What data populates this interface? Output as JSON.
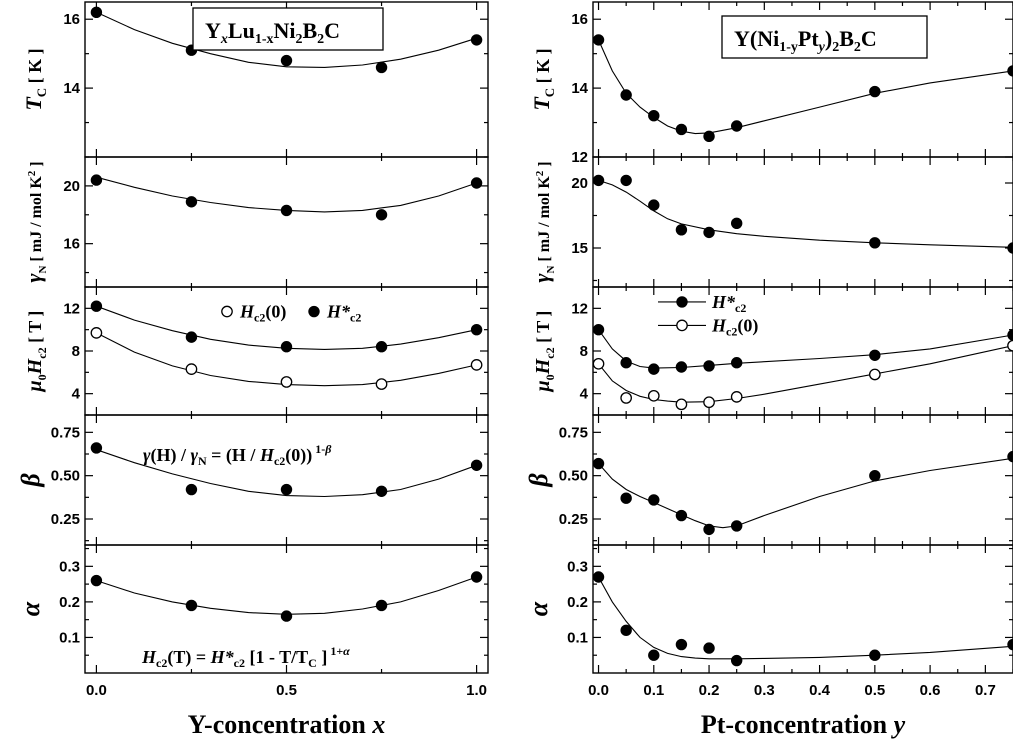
{
  "chart_data": [
    {
      "type": "scatter",
      "title": "Y_xLu_1-xNi_2B_2C",
      "title_parts": {
        "Y": "Y",
        "x1": "x",
        "Lu": "Lu",
        "sub1": "1-x",
        "Ni": "Ni",
        "sub2": "2",
        "B": "B",
        "sub3": "2",
        "C": "C"
      },
      "xlabel": "Y-concentration x",
      "xlabel_parts": {
        "main": "Y-concentration ",
        "var": "x"
      },
      "xlim": [
        -0.03,
        1.03
      ],
      "xticks": [
        0.0,
        0.5,
        1.0
      ],
      "xticklabels": [
        "0.0",
        "0.5",
        "1.0"
      ],
      "panels": [
        {
          "ylabel": "T_C [ K ]",
          "ylim": [
            12.0,
            16.5
          ],
          "yticks": [
            14,
            16
          ],
          "yticklabels": [
            "14",
            "16"
          ],
          "series": [
            {
              "marker": "filled",
              "x": [
                0.0,
                0.25,
                0.5,
                0.75,
                1.0
              ],
              "y": [
                16.2,
                15.1,
                14.8,
                14.6,
                15.4
              ],
              "fit": {
                "x": [
                  0.0,
                  0.1,
                  0.2,
                  0.3,
                  0.4,
                  0.5,
                  0.6,
                  0.7,
                  0.8,
                  0.9,
                  1.0
                ],
                "y": [
                  16.2,
                  15.7,
                  15.3,
                  15.0,
                  14.75,
                  14.62,
                  14.6,
                  14.67,
                  14.84,
                  15.1,
                  15.45
                ]
              }
            }
          ]
        },
        {
          "ylabel": "γ_N [ mJ / mol K² ]",
          "ylim": [
            13.0,
            22.0
          ],
          "yticks": [
            16,
            20
          ],
          "yticklabels": [
            "16",
            "20"
          ],
          "series": [
            {
              "marker": "filled",
              "x": [
                0.0,
                0.25,
                0.5,
                0.75,
                1.0
              ],
              "y": [
                20.4,
                18.9,
                18.3,
                18.0,
                20.2
              ],
              "fit": {
                "x": [
                  0.0,
                  0.1,
                  0.2,
                  0.3,
                  0.4,
                  0.5,
                  0.6,
                  0.7,
                  0.8,
                  0.9,
                  1.0
                ],
                "y": [
                  20.6,
                  19.9,
                  19.3,
                  18.85,
                  18.5,
                  18.3,
                  18.2,
                  18.3,
                  18.65,
                  19.3,
                  20.2
                ]
              }
            }
          ]
        },
        {
          "ylabel": "μ0Hc2 [ T ]",
          "ylim": [
            2.0,
            14.0
          ],
          "yticks": [
            4,
            8,
            12
          ],
          "yticklabels": [
            "4",
            "8",
            "12"
          ],
          "legend": [
            {
              "marker": "open",
              "label": "Hc2(0)"
            },
            {
              "marker": "filled",
              "label": "H*c2"
            }
          ],
          "series": [
            {
              "name": "H*c2",
              "marker": "filled",
              "x": [
                0.0,
                0.25,
                0.5,
                0.75,
                1.0
              ],
              "y": [
                12.2,
                9.3,
                8.4,
                8.4,
                10.0
              ],
              "fit": {
                "x": [
                  0.0,
                  0.1,
                  0.2,
                  0.3,
                  0.4,
                  0.5,
                  0.6,
                  0.7,
                  0.8,
                  0.9,
                  1.0
                ],
                "y": [
                  12.2,
                  10.9,
                  9.9,
                  9.1,
                  8.55,
                  8.25,
                  8.15,
                  8.25,
                  8.65,
                  9.25,
                  10.0
                ]
              }
            },
            {
              "name": "Hc2(0)",
              "marker": "open",
              "x": [
                0.0,
                0.25,
                0.5,
                0.75,
                1.0
              ],
              "y": [
                9.7,
                6.3,
                5.1,
                4.9,
                6.7
              ],
              "fit": {
                "x": [
                  0.0,
                  0.1,
                  0.2,
                  0.3,
                  0.4,
                  0.5,
                  0.6,
                  0.7,
                  0.8,
                  0.9,
                  1.0
                ],
                "y": [
                  9.7,
                  7.9,
                  6.6,
                  5.7,
                  5.15,
                  4.85,
                  4.75,
                  4.85,
                  5.25,
                  5.9,
                  6.7
                ]
              }
            }
          ]
        },
        {
          "ylabel": "β",
          "ylim": [
            0.1,
            0.85
          ],
          "yticks": [
            0.25,
            0.5,
            0.75
          ],
          "yticklabels": [
            "0.25",
            "0.50",
            "0.75"
          ],
          "annotation": "γ(H) / γ_N = (H / Hc2(0)) ^1-β",
          "series": [
            {
              "marker": "filled",
              "x": [
                0.0,
                0.25,
                0.5,
                0.75,
                1.0
              ],
              "y": [
                0.66,
                0.42,
                0.42,
                0.41,
                0.56
              ],
              "fit": {
                "x": [
                  0.0,
                  0.1,
                  0.2,
                  0.3,
                  0.4,
                  0.5,
                  0.6,
                  0.7,
                  0.8,
                  0.9,
                  1.0
                ],
                "y": [
                  0.65,
                  0.575,
                  0.51,
                  0.455,
                  0.41,
                  0.385,
                  0.38,
                  0.39,
                  0.42,
                  0.48,
                  0.56
                ]
              }
            }
          ]
        },
        {
          "ylabel": "α",
          "ylim": [
            0.0,
            0.36
          ],
          "yticks": [
            0.1,
            0.2,
            0.3
          ],
          "yticklabels": [
            "0.1",
            "0.2",
            "0.3"
          ],
          "annotation": "Hc2(T) = H*c2 [1 - T/T_C ] ^1+α",
          "series": [
            {
              "marker": "filled",
              "x": [
                0.0,
                0.25,
                0.5,
                0.75,
                1.0
              ],
              "y": [
                0.26,
                0.19,
                0.16,
                0.19,
                0.27
              ],
              "fit": {
                "x": [
                  0.0,
                  0.1,
                  0.2,
                  0.3,
                  0.4,
                  0.5,
                  0.6,
                  0.7,
                  0.8,
                  0.9,
                  1.0
                ],
                "y": [
                  0.26,
                  0.225,
                  0.2,
                  0.182,
                  0.17,
                  0.165,
                  0.168,
                  0.18,
                  0.2,
                  0.232,
                  0.27
                ]
              }
            }
          ]
        }
      ]
    },
    {
      "type": "scatter",
      "title": "Y(Ni_1-yPt_y)_2B_2C",
      "title_parts": {
        "Y": "Y(Ni",
        "sub1": "1-y",
        "Pt": "Pt",
        "sub2": "y",
        "close": ")",
        "sub3": "2",
        "B": "B",
        "sub4": "2",
        "C": "C"
      },
      "xlabel": "Pt-concentration y",
      "xlabel_parts": {
        "main": "Pt-concentration ",
        "var": "y"
      },
      "xlim": [
        -0.01,
        0.75
      ],
      "xticks": [
        0.0,
        0.1,
        0.2,
        0.3,
        0.4,
        0.5,
        0.6,
        0.7
      ],
      "xticklabels": [
        "0.0",
        "0.1",
        "0.2",
        "0.3",
        "0.4",
        "0.5",
        "0.6",
        "0.7"
      ],
      "panels": [
        {
          "ylabel": "T_C [ K ]",
          "ylim": [
            12.0,
            16.5
          ],
          "yticks": [
            12,
            14,
            16
          ],
          "yticklabels": [
            "12",
            "14",
            "16"
          ],
          "series": [
            {
              "marker": "filled",
              "x": [
                0.0,
                0.05,
                0.1,
                0.15,
                0.2,
                0.25,
                0.5,
                0.75
              ],
              "y": [
                15.4,
                13.8,
                13.2,
                12.8,
                12.6,
                12.9,
                13.9,
                14.5
              ],
              "fit": {
                "x": [
                  0.0,
                  0.025,
                  0.05,
                  0.075,
                  0.1,
                  0.125,
                  0.15,
                  0.175,
                  0.2,
                  0.25,
                  0.3,
                  0.4,
                  0.5,
                  0.6,
                  0.75
                ],
                "y": [
                  15.4,
                  14.5,
                  13.85,
                  13.45,
                  13.15,
                  12.9,
                  12.75,
                  12.68,
                  12.7,
                  12.85,
                  13.05,
                  13.45,
                  13.85,
                  14.15,
                  14.5
                ]
              }
            }
          ]
        },
        {
          "ylabel": "γ_N [ mJ / mol K² ]",
          "ylim": [
            12.0,
            22.0
          ],
          "yticks": [
            15,
            20
          ],
          "yticklabels": [
            "15",
            "20"
          ],
          "series": [
            {
              "marker": "filled",
              "x": [
                0.0,
                0.05,
                0.1,
                0.15,
                0.2,
                0.25,
                0.5,
                0.75
              ],
              "y": [
                20.2,
                20.2,
                18.3,
                16.4,
                16.2,
                16.9,
                15.4,
                15.0
              ],
              "fit": {
                "x": [
                  0.0,
                  0.025,
                  0.05,
                  0.075,
                  0.1,
                  0.125,
                  0.15,
                  0.2,
                  0.25,
                  0.3,
                  0.4,
                  0.5,
                  0.6,
                  0.75
                ],
                "y": [
                  20.2,
                  19.85,
                  19.3,
                  18.6,
                  17.85,
                  17.25,
                  16.85,
                  16.4,
                  16.1,
                  15.9,
                  15.6,
                  15.4,
                  15.25,
                  15.05
                ]
              }
            }
          ]
        },
        {
          "ylabel": "μ0Hc2 [ T ]",
          "ylim": [
            2.0,
            14.0
          ],
          "yticks": [
            4,
            8,
            12
          ],
          "yticklabels": [
            "4",
            "8",
            "12"
          ],
          "legend": [
            {
              "marker": "filled",
              "label": "H*c2"
            },
            {
              "marker": "open",
              "label": "Hc2(0)"
            }
          ],
          "series": [
            {
              "name": "H*c2",
              "marker": "filled",
              "x": [
                0.0,
                0.05,
                0.1,
                0.15,
                0.2,
                0.25,
                0.5,
                0.75
              ],
              "y": [
                10.0,
                6.9,
                6.3,
                6.5,
                6.6,
                6.9,
                7.6,
                9.5
              ],
              "fit": {
                "x": [
                  0.0,
                  0.025,
                  0.05,
                  0.075,
                  0.1,
                  0.15,
                  0.2,
                  0.25,
                  0.3,
                  0.4,
                  0.5,
                  0.6,
                  0.75
                ],
                "y": [
                  10.0,
                  8.2,
                  7.05,
                  6.55,
                  6.4,
                  6.45,
                  6.65,
                  6.85,
                  7.0,
                  7.3,
                  7.65,
                  8.2,
                  9.5
                ]
              }
            },
            {
              "name": "Hc2(0)",
              "marker": "open",
              "x": [
                0.0,
                0.05,
                0.1,
                0.15,
                0.2,
                0.25,
                0.5,
                0.75
              ],
              "y": [
                6.8,
                3.6,
                3.8,
                3.0,
                3.2,
                3.7,
                5.8,
                8.5
              ],
              "fit": {
                "x": [
                  0.0,
                  0.025,
                  0.05,
                  0.075,
                  0.1,
                  0.125,
                  0.15,
                  0.2,
                  0.25,
                  0.3,
                  0.4,
                  0.5,
                  0.6,
                  0.75
                ],
                "y": [
                  6.8,
                  5.2,
                  4.3,
                  3.75,
                  3.45,
                  3.3,
                  3.2,
                  3.25,
                  3.55,
                  3.95,
                  4.9,
                  5.85,
                  6.8,
                  8.5
                ]
              }
            }
          ]
        },
        {
          "ylabel": "β",
          "ylim": [
            0.1,
            0.85
          ],
          "yticks": [
            0.25,
            0.5,
            0.75
          ],
          "yticklabels": [
            "0.25",
            "0.50",
            "0.75"
          ],
          "series": [
            {
              "marker": "filled",
              "x": [
                0.0,
                0.05,
                0.1,
                0.15,
                0.2,
                0.25,
                0.5,
                0.75
              ],
              "y": [
                0.57,
                0.37,
                0.36,
                0.27,
                0.19,
                0.21,
                0.5,
                0.61
              ],
              "fit": {
                "x": [
                  0.0,
                  0.025,
                  0.05,
                  0.075,
                  0.1,
                  0.125,
                  0.15,
                  0.175,
                  0.2,
                  0.225,
                  0.25,
                  0.3,
                  0.4,
                  0.5,
                  0.6,
                  0.75
                ],
                "y": [
                  0.57,
                  0.48,
                  0.42,
                  0.38,
                  0.345,
                  0.31,
                  0.275,
                  0.24,
                  0.21,
                  0.2,
                  0.21,
                  0.27,
                  0.38,
                  0.47,
                  0.53,
                  0.6
                ]
              }
            }
          ]
        },
        {
          "ylabel": "α",
          "ylim": [
            0.0,
            0.36
          ],
          "yticks": [
            0.1,
            0.2,
            0.3
          ],
          "yticklabels": [
            "0.1",
            "0.2",
            "0.3"
          ],
          "series": [
            {
              "marker": "filled",
              "x": [
                0.0,
                0.05,
                0.1,
                0.15,
                0.2,
                0.25,
                0.5,
                0.75
              ],
              "y": [
                0.27,
                0.12,
                0.05,
                0.08,
                0.07,
                0.035,
                0.05,
                0.08
              ],
              "fit": {
                "x": [
                  0.0,
                  0.025,
                  0.05,
                  0.075,
                  0.1,
                  0.125,
                  0.15,
                  0.175,
                  0.2,
                  0.25,
                  0.3,
                  0.4,
                  0.5,
                  0.6,
                  0.75
                ],
                "y": [
                  0.27,
                  0.2,
                  0.145,
                  0.1,
                  0.072,
                  0.055,
                  0.046,
                  0.042,
                  0.04,
                  0.04,
                  0.041,
                  0.044,
                  0.05,
                  0.058,
                  0.075
                ]
              }
            }
          ]
        }
      ]
    }
  ]
}
